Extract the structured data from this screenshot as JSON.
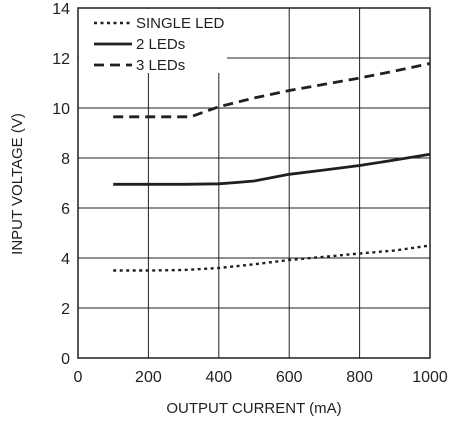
{
  "chart_data": {
    "type": "line",
    "title": "",
    "xlabel": "OUTPUT CURRENT (mA)",
    "ylabel": "INPUT VOLTAGE (V)",
    "xlim": [
      0,
      1000
    ],
    "ylim": [
      0,
      14
    ],
    "xticks": [
      0,
      200,
      400,
      600,
      800,
      1000
    ],
    "yticks": [
      0,
      2,
      4,
      6,
      8,
      10,
      12,
      14
    ],
    "grid": true,
    "legend_position": "top-left",
    "colors": {
      "line": "#231f20",
      "grid": "#231f20",
      "background": "#ffffff"
    },
    "series": [
      {
        "name": "SINGLE LED",
        "style": "dotted",
        "x": [
          100,
          200,
          300,
          400,
          500,
          600,
          700,
          800,
          900,
          1000
        ],
        "y": [
          3.5,
          3.5,
          3.52,
          3.6,
          3.75,
          3.92,
          4.05,
          4.18,
          4.3,
          4.5
        ]
      },
      {
        "name": "2 LEDs",
        "style": "solid",
        "x": [
          100,
          200,
          300,
          400,
          450,
          500,
          600,
          700,
          800,
          900,
          1000
        ],
        "y": [
          6.95,
          6.95,
          6.95,
          6.97,
          7.02,
          7.08,
          7.35,
          7.52,
          7.7,
          7.92,
          8.15
        ]
      },
      {
        "name": "3 LEDs",
        "style": "dashed",
        "x": [
          100,
          200,
          320,
          400,
          500,
          600,
          700,
          800,
          900,
          1000
        ],
        "y": [
          9.65,
          9.65,
          9.65,
          10.05,
          10.4,
          10.7,
          10.95,
          11.2,
          11.48,
          11.78
        ]
      }
    ]
  }
}
